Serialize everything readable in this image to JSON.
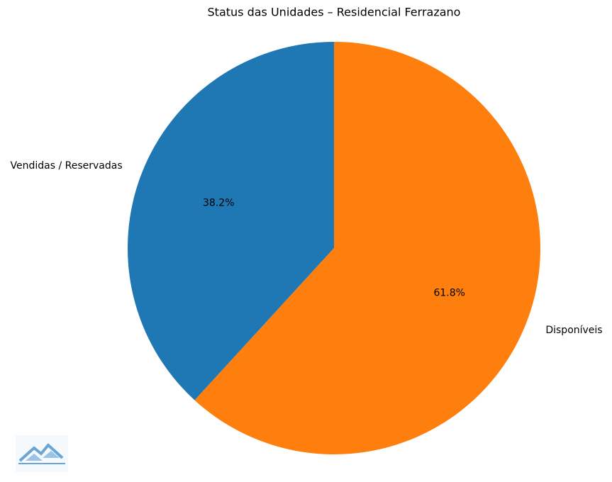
{
  "chart_data": {
    "type": "pie",
    "title": "Status das Unidades – Residencial Ferrazano",
    "categories": [
      "Vendidas / Reservadas",
      "Disponíveis"
    ],
    "values": [
      38.2,
      61.8
    ],
    "value_labels": [
      "38.2%",
      "61.8%"
    ],
    "colors": [
      "#1f77b4",
      "#ff7f0e"
    ],
    "start_angle": 90
  }
}
